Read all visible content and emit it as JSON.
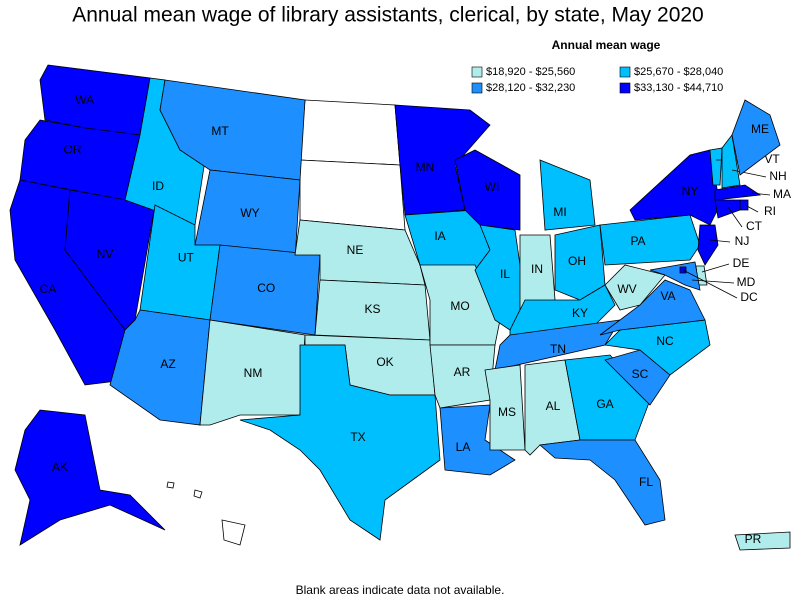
{
  "title": "Annual mean wage of library assistants, clerical, by state, May 2020",
  "legend": {
    "title": "Annual mean wage",
    "items": [
      {
        "label": "$18,920 - $25,560",
        "color": "#b0ecec"
      },
      {
        "label": "$25,670 - $28,040",
        "color": "#00bfff"
      },
      {
        "label": "$28,120 - $32,230",
        "color": "#1e8fff"
      },
      {
        "label": "$33,130 - $44,710",
        "color": "#0000ff"
      }
    ]
  },
  "states": [
    {
      "label": "WA",
      "color": "#0000ff"
    },
    {
      "label": "OR",
      "color": "#0000ff"
    },
    {
      "label": "CA",
      "color": "#0000ff"
    },
    {
      "label": "NV",
      "color": "#0000ff"
    },
    {
      "label": "ID",
      "color": "#00bfff"
    },
    {
      "label": "MT",
      "color": "#1e8fff"
    },
    {
      "label": "WY",
      "color": "#1e8fff"
    },
    {
      "label": "UT",
      "color": "#00bfff"
    },
    {
      "label": "AZ",
      "color": "#1e8fff"
    },
    {
      "label": "CO",
      "color": "#1e8fff"
    },
    {
      "label": "NM",
      "color": "#b0ecec"
    },
    {
      "label": "NE",
      "color": "#b0ecec"
    },
    {
      "label": "KS",
      "color": "#b0ecec"
    },
    {
      "label": "OK",
      "color": "#b0ecec"
    },
    {
      "label": "TX",
      "color": "#00bfff"
    },
    {
      "label": "MN",
      "color": "#0000ff"
    },
    {
      "label": "IA",
      "color": "#00bfff"
    },
    {
      "label": "MO",
      "color": "#b0ecec"
    },
    {
      "label": "AR",
      "color": "#b0ecec"
    },
    {
      "label": "LA",
      "color": "#1e8fff"
    },
    {
      "label": "WI",
      "color": "#0000ff"
    },
    {
      "label": "IL",
      "color": "#00bfff"
    },
    {
      "label": "MI",
      "color": "#00bfff"
    },
    {
      "label": "IN",
      "color": "#b0ecec"
    },
    {
      "label": "OH",
      "color": "#00bfff"
    },
    {
      "label": "KY",
      "color": "#00bfff"
    },
    {
      "label": "TN",
      "color": "#1e8fff"
    },
    {
      "label": "MS",
      "color": "#b0ecec"
    },
    {
      "label": "AL",
      "color": "#b0ecec"
    },
    {
      "label": "GA",
      "color": "#00bfff"
    },
    {
      "label": "FL",
      "color": "#1e8fff"
    },
    {
      "label": "SC",
      "color": "#1e8fff"
    },
    {
      "label": "NC",
      "color": "#00bfff"
    },
    {
      "label": "VA",
      "color": "#1e8fff"
    },
    {
      "label": "WV",
      "color": "#b0ecec"
    },
    {
      "label": "PA",
      "color": "#00bfff"
    },
    {
      "label": "NY",
      "color": "#0000ff"
    },
    {
      "label": "VT",
      "color": "#00bfff"
    },
    {
      "label": "NH",
      "color": "#00bfff"
    },
    {
      "label": "ME",
      "color": "#1e8fff"
    },
    {
      "label": "MA",
      "color": "#0000ff"
    },
    {
      "label": "RI",
      "color": "#0000ff"
    },
    {
      "label": "CT",
      "color": "#0000ff"
    },
    {
      "label": "NJ",
      "color": "#0000ff"
    },
    {
      "label": "DE",
      "color": "#b0ecec"
    },
    {
      "label": "MD",
      "color": "#1e8fff"
    },
    {
      "label": "DC",
      "color": "#0000ff"
    },
    {
      "label": "AK",
      "color": "#0000ff"
    },
    {
      "label": "PR",
      "color": "#b0ecec"
    }
  ],
  "note": "Blank areas indicate data not available."
}
